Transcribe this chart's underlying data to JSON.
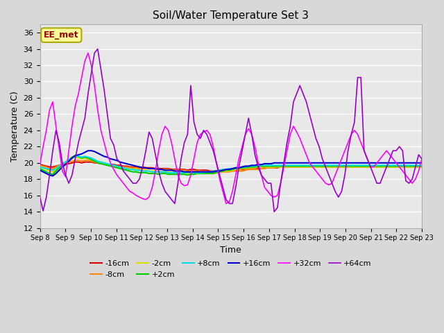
{
  "title": "Soil/Water Temperature Set 3",
  "xlabel": "Time",
  "ylabel": "Temperature (C)",
  "xlim": [
    0,
    15
  ],
  "ylim": [
    12,
    37
  ],
  "yticks": [
    12,
    14,
    16,
    18,
    20,
    22,
    24,
    26,
    28,
    30,
    32,
    34,
    36
  ],
  "xtick_labels": [
    "Sep 8",
    "Sep 9",
    "Sep 10",
    "Sep 11",
    "Sep 12",
    "Sep 13",
    "Sep 14",
    "Sep 15",
    "Sep 16",
    "Sep 17",
    "Sep 18",
    "Sep 19",
    "Sep 20",
    "Sep 21",
    "Sep 22",
    "Sep 23"
  ],
  "bg_color": "#e8e8e8",
  "grid_color": "#ffffff",
  "annotation_text": "EE_met",
  "annotation_bg": "#ffff99",
  "annotation_border": "#aaaa00",
  "annotation_fg": "#990000",
  "series": {
    "-16cm": {
      "color": "#dd0000",
      "lw": 1.5,
      "y": [
        19.8,
        19.7,
        19.6,
        19.5,
        19.5,
        19.6,
        19.7,
        19.8,
        19.9,
        19.9,
        20.0,
        20.1,
        20.1,
        20.0,
        20.1,
        20.1,
        20.1,
        20.0,
        20.0,
        19.9,
        19.9,
        19.8,
        19.8,
        19.8,
        19.7,
        19.7,
        19.6,
        19.6,
        19.5,
        19.5,
        19.5,
        19.4,
        19.5,
        19.4,
        19.4,
        19.4,
        19.3,
        19.3,
        19.3,
        19.3,
        19.3,
        19.2,
        19.2,
        19.2,
        19.2,
        19.2,
        19.1,
        19.2,
        19.2,
        19.1,
        19.1,
        19.1,
        19.1,
        19.0,
        19.0,
        19.0,
        19.1,
        19.1,
        19.1,
        19.1,
        19.1,
        19.2,
        19.2,
        19.2,
        19.2,
        19.3,
        19.3,
        19.3,
        19.3,
        19.3,
        19.4,
        19.4,
        19.4,
        19.4,
        19.4,
        19.5,
        19.5,
        19.5,
        19.5,
        19.5,
        19.5,
        19.5,
        19.5,
        19.5,
        19.5,
        19.5,
        19.5,
        19.5,
        19.5,
        19.5,
        19.5,
        19.5,
        19.5,
        19.5,
        19.5,
        19.5,
        19.5,
        19.5,
        19.5,
        19.5,
        19.5,
        19.5,
        19.5,
        19.5,
        19.5,
        19.5,
        19.5,
        19.5,
        19.5,
        19.5,
        19.5,
        19.5,
        19.5,
        19.5,
        19.5,
        19.5,
        19.5,
        19.5,
        19.5,
        19.5
      ]
    },
    "-8cm": {
      "color": "#ff8800",
      "lw": 1.5,
      "y": [
        19.7,
        19.6,
        19.5,
        19.3,
        19.3,
        19.5,
        19.7,
        19.9,
        20.0,
        20.1,
        20.2,
        20.3,
        20.3,
        20.2,
        20.3,
        20.3,
        20.2,
        20.1,
        20.0,
        19.9,
        19.9,
        19.8,
        19.7,
        19.7,
        19.6,
        19.5,
        19.5,
        19.5,
        19.4,
        19.4,
        19.4,
        19.3,
        19.3,
        19.3,
        19.3,
        19.3,
        19.2,
        19.2,
        19.2,
        19.2,
        19.2,
        19.1,
        19.1,
        19.1,
        19.1,
        19.1,
        19.0,
        19.0,
        19.0,
        19.0,
        19.0,
        18.9,
        18.9,
        18.9,
        18.9,
        18.9,
        18.9,
        18.9,
        18.9,
        18.9,
        19.0,
        19.0,
        19.0,
        19.0,
        19.1,
        19.2,
        19.2,
        19.2,
        19.2,
        19.3,
        19.3,
        19.4,
        19.4,
        19.4,
        19.5,
        19.5,
        19.5,
        19.5,
        19.5,
        19.5,
        19.5,
        19.5,
        19.5,
        19.5,
        19.5,
        19.5,
        19.5,
        19.5,
        19.5,
        19.5,
        19.5,
        19.5,
        19.5,
        19.5,
        19.5,
        19.5,
        19.5,
        19.5,
        19.5,
        19.5,
        19.5,
        19.5,
        19.5,
        19.5,
        19.5,
        19.5,
        19.5,
        19.5,
        19.5,
        19.5,
        19.5,
        19.5,
        19.5,
        19.5,
        19.5,
        19.5,
        19.5,
        19.5,
        19.5,
        19.5
      ]
    },
    "-2cm": {
      "color": "#dddd00",
      "lw": 1.5,
      "y": [
        19.5,
        19.4,
        19.2,
        19.0,
        18.9,
        19.2,
        19.5,
        19.9,
        20.1,
        20.3,
        20.5,
        20.7,
        20.6,
        20.5,
        20.6,
        20.5,
        20.4,
        20.2,
        20.1,
        20.0,
        19.9,
        19.8,
        19.7,
        19.6,
        19.5,
        19.4,
        19.4,
        19.3,
        19.3,
        19.2,
        19.2,
        19.1,
        19.1,
        19.1,
        19.0,
        19.0,
        19.0,
        18.9,
        18.9,
        18.9,
        18.9,
        18.8,
        18.8,
        18.8,
        18.8,
        18.7,
        18.7,
        18.7,
        18.7,
        18.7,
        18.7,
        18.7,
        18.7,
        18.7,
        18.7,
        18.8,
        18.9,
        19.0,
        19.0,
        19.0,
        19.1,
        19.2,
        19.2,
        19.3,
        19.3,
        19.4,
        19.4,
        19.4,
        19.5,
        19.5,
        19.5,
        19.5,
        19.5,
        19.5,
        19.5,
        19.5,
        19.5,
        19.5,
        19.5,
        19.5,
        19.5,
        19.5,
        19.5,
        19.5,
        19.5,
        19.5,
        19.5,
        19.5,
        19.5,
        19.5,
        19.5,
        19.5,
        19.5,
        19.5,
        19.5,
        19.5,
        19.5,
        19.5,
        19.5,
        19.5,
        19.5,
        19.5,
        19.5,
        19.5,
        19.5,
        19.5,
        19.5,
        19.5,
        19.5,
        19.5,
        19.5,
        19.5,
        19.5,
        19.5,
        19.5,
        19.5,
        19.5,
        19.5,
        19.5,
        19.5
      ]
    },
    "+2cm": {
      "color": "#00cc00",
      "lw": 1.5,
      "y": [
        19.3,
        19.1,
        18.9,
        18.7,
        18.6,
        19.0,
        19.4,
        19.8,
        20.1,
        20.4,
        20.7,
        20.9,
        20.8,
        20.6,
        20.7,
        20.6,
        20.4,
        20.2,
        20.0,
        19.9,
        19.8,
        19.7,
        19.6,
        19.5,
        19.4,
        19.3,
        19.2,
        19.1,
        19.0,
        18.9,
        18.9,
        18.8,
        18.8,
        18.8,
        18.7,
        18.7,
        18.7,
        18.6,
        18.7,
        18.7,
        18.6,
        18.6,
        18.6,
        18.6,
        18.6,
        18.6,
        18.5,
        18.6,
        18.6,
        18.7,
        18.7,
        18.7,
        18.7,
        18.7,
        18.7,
        18.8,
        18.9,
        19.0,
        19.1,
        19.1,
        19.2,
        19.3,
        19.3,
        19.4,
        19.4,
        19.5,
        19.5,
        19.5,
        19.6,
        19.6,
        19.6,
        19.6,
        19.6,
        19.6,
        19.6,
        19.6,
        19.6,
        19.6,
        19.6,
        19.6,
        19.6,
        19.6,
        19.6,
        19.6,
        19.6,
        19.6,
        19.6,
        19.6,
        19.6,
        19.6,
        19.6,
        19.6,
        19.6,
        19.6,
        19.6,
        19.6,
        19.6,
        19.6,
        19.6,
        19.6,
        19.6,
        19.6,
        19.6,
        19.6,
        19.6,
        19.6,
        19.6,
        19.6,
        19.6,
        19.6,
        19.6,
        19.6,
        19.6,
        19.6,
        19.6,
        19.6,
        19.6,
        19.6,
        19.6,
        19.6
      ]
    },
    "+8cm": {
      "color": "#00dddd",
      "lw": 1.5,
      "y": [
        19.5,
        19.4,
        19.3,
        19.2,
        19.1,
        19.3,
        19.6,
        19.9,
        20.1,
        20.4,
        20.6,
        20.8,
        20.8,
        20.7,
        20.8,
        20.7,
        20.6,
        20.4,
        20.2,
        20.1,
        20.0,
        19.9,
        19.8,
        19.7,
        19.6,
        19.5,
        19.4,
        19.3,
        19.2,
        19.2,
        19.1,
        19.1,
        19.0,
        19.0,
        19.0,
        18.9,
        18.9,
        18.9,
        18.9,
        18.9,
        18.8,
        18.8,
        18.8,
        18.8,
        18.8,
        18.8,
        18.8,
        18.8,
        18.8,
        18.8,
        18.8,
        18.8,
        18.9,
        18.9,
        19.0,
        19.0,
        19.1,
        19.2,
        19.2,
        19.3,
        19.3,
        19.4,
        19.4,
        19.5,
        19.5,
        19.6,
        19.6,
        19.6,
        19.7,
        19.7,
        19.7,
        19.7,
        19.7,
        19.7,
        19.7,
        19.7,
        19.7,
        19.7,
        19.7,
        19.7,
        19.7,
        19.7,
        19.7,
        19.7,
        19.7,
        19.7,
        19.7,
        19.7,
        19.7,
        19.7,
        19.7,
        19.7,
        19.7,
        19.7,
        19.7,
        19.7,
        19.7,
        19.7,
        19.7,
        19.7,
        19.7,
        19.7,
        19.7,
        19.7,
        19.7,
        19.7,
        19.7,
        19.7,
        19.7,
        19.7,
        19.7,
        19.7,
        19.7,
        19.7,
        19.7,
        19.7,
        19.7,
        19.7,
        19.7,
        19.7
      ]
    },
    "+16cm": {
      "color": "#0000cc",
      "lw": 1.5,
      "y": [
        19.1,
        18.9,
        18.7,
        18.5,
        18.4,
        18.7,
        19.1,
        19.5,
        19.8,
        20.2,
        20.6,
        20.9,
        21.0,
        21.1,
        21.3,
        21.5,
        21.5,
        21.4,
        21.2,
        21.0,
        20.8,
        20.7,
        20.5,
        20.4,
        20.3,
        20.1,
        20.0,
        19.9,
        19.8,
        19.7,
        19.6,
        19.5,
        19.4,
        19.4,
        19.3,
        19.3,
        19.3,
        19.2,
        19.2,
        19.1,
        19.1,
        19.1,
        19.0,
        19.0,
        19.0,
        18.9,
        18.9,
        18.9,
        18.9,
        18.9,
        18.9,
        18.9,
        18.9,
        18.9,
        18.9,
        19.0,
        19.0,
        19.1,
        19.2,
        19.2,
        19.3,
        19.4,
        19.4,
        19.5,
        19.6,
        19.6,
        19.7,
        19.7,
        19.8,
        19.8,
        19.9,
        19.9,
        19.9,
        20.0,
        20.0,
        20.0,
        20.0,
        20.0,
        20.0,
        20.0,
        20.0,
        20.0,
        20.0,
        20.0,
        20.0,
        20.0,
        20.0,
        20.0,
        20.0,
        20.0,
        20.0,
        20.0,
        20.0,
        20.0,
        20.0,
        20.0,
        20.0,
        20.0,
        20.0,
        20.0,
        20.0,
        20.0,
        20.0,
        20.0,
        20.0,
        20.0,
        20.0,
        20.0,
        20.0,
        20.0,
        20.0,
        20.0,
        20.0,
        20.0,
        20.0,
        20.0,
        20.0,
        20.0,
        20.0,
        20.0
      ]
    },
    "+32cm": {
      "color": "#ff00ff",
      "lw": 1.2,
      "y": [
        19.8,
        22.0,
        24.0,
        26.5,
        27.5,
        24.5,
        21.8,
        19.0,
        18.3,
        21.5,
        24.5,
        27.0,
        28.5,
        30.5,
        32.5,
        33.5,
        32.0,
        29.5,
        26.5,
        24.0,
        22.5,
        21.0,
        20.0,
        19.2,
        18.5,
        18.0,
        17.5,
        17.0,
        16.5,
        16.3,
        16.0,
        15.8,
        15.6,
        15.5,
        15.8,
        17.0,
        19.0,
        21.5,
        23.5,
        24.5,
        24.0,
        22.5,
        20.5,
        18.5,
        17.5,
        17.2,
        17.3,
        18.5,
        20.5,
        22.5,
        23.5,
        23.8,
        24.0,
        23.5,
        22.0,
        20.0,
        18.0,
        16.5,
        15.0,
        15.2,
        16.5,
        18.5,
        20.5,
        22.0,
        23.5,
        24.2,
        23.5,
        22.0,
        20.0,
        18.5,
        17.0,
        16.5,
        16.0,
        15.8,
        16.0,
        17.5,
        19.5,
        21.5,
        23.5,
        24.5,
        23.8,
        23.0,
        22.0,
        21.0,
        20.0,
        19.5,
        19.0,
        18.5,
        18.0,
        17.5,
        17.3,
        17.5,
        18.5,
        19.5,
        20.5,
        21.5,
        22.5,
        23.5,
        24.0,
        23.5,
        22.5,
        21.5,
        20.5,
        19.5,
        19.5,
        20.0,
        20.5,
        21.0,
        21.5,
        21.0,
        20.5,
        20.0,
        19.5,
        19.0,
        18.5,
        18.0,
        17.5,
        18.0,
        19.0,
        20.5
      ]
    },
    "+64cm": {
      "color": "#9900cc",
      "lw": 1.2,
      "y": [
        15.8,
        14.1,
        15.8,
        18.5,
        21.5,
        24.0,
        22.5,
        20.0,
        18.5,
        17.5,
        18.5,
        20.5,
        22.5,
        24.0,
        25.5,
        28.5,
        31.0,
        33.5,
        34.0,
        31.5,
        29.0,
        26.0,
        23.0,
        22.2,
        20.5,
        20.0,
        19.0,
        18.5,
        18.0,
        17.5,
        17.5,
        18.0,
        19.5,
        21.5,
        23.8,
        23.0,
        21.0,
        19.0,
        17.5,
        16.5,
        16.0,
        15.5,
        15.0,
        17.5,
        20.5,
        22.5,
        23.5,
        29.5,
        25.0,
        23.5,
        23.0,
        24.0,
        23.5,
        22.5,
        21.5,
        20.0,
        18.5,
        17.0,
        15.5,
        15.0,
        15.0,
        17.0,
        19.5,
        21.5,
        23.5,
        25.5,
        23.5,
        21.0,
        19.5,
        18.5,
        18.0,
        17.5,
        17.5,
        14.0,
        14.5,
        17.5,
        20.0,
        22.5,
        24.5,
        27.5,
        28.5,
        29.5,
        28.5,
        27.5,
        26.0,
        24.5,
        23.0,
        22.0,
        20.5,
        19.5,
        18.5,
        17.5,
        16.5,
        15.8,
        16.5,
        18.5,
        21.5,
        23.5,
        25.0,
        30.5,
        30.5,
        21.5,
        20.5,
        19.5,
        18.5,
        17.5,
        17.5,
        18.5,
        19.5,
        20.5,
        21.5,
        21.5,
        22.0,
        21.5,
        17.8,
        17.5,
        18.0,
        19.5,
        21.0,
        20.5
      ]
    }
  }
}
